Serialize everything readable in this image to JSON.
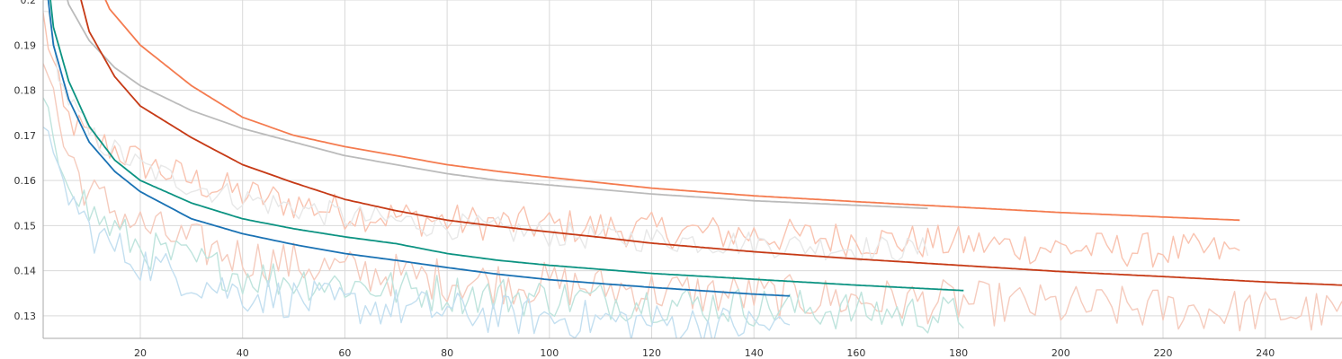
{
  "chart_data": {
    "type": "line",
    "title": "",
    "xlabel": "",
    "ylabel": "",
    "xlim": [
      1,
      255
    ],
    "ylim": [
      0.125,
      0.2
    ],
    "x_ticks": [
      20,
      40,
      60,
      80,
      100,
      120,
      140,
      160,
      180,
      200,
      220,
      240
    ],
    "y_ticks": [
      0.13,
      0.14,
      0.15,
      0.16,
      0.17,
      0.18,
      0.19,
      0.2
    ],
    "x_tick_labels": [
      "20",
      "40",
      "60",
      "80",
      "100",
      "120",
      "140",
      "160",
      "180",
      "200",
      "220",
      "240"
    ],
    "y_tick_labels": [
      "0.13",
      "0.14",
      "0.15",
      "0.16",
      "0.17",
      "0.18",
      "0.19",
      "0.2"
    ],
    "grid": true,
    "legend": "none",
    "series": [
      {
        "color": "#f47b4f",
        "raw_color": "#f9c3b0",
        "smoothed": [
          [
            1,
            0.26
          ],
          [
            6,
            0.226
          ],
          [
            10,
            0.208
          ],
          [
            14,
            0.198
          ],
          [
            20,
            0.19
          ],
          [
            30,
            0.181
          ],
          [
            40,
            0.174
          ],
          [
            50,
            0.17
          ],
          [
            60,
            0.1675
          ],
          [
            70,
            0.1655
          ],
          [
            80,
            0.1635
          ],
          [
            90,
            0.162
          ],
          [
            100,
            0.1607
          ],
          [
            120,
            0.1583
          ],
          [
            140,
            0.1566
          ],
          [
            160,
            0.1553
          ],
          [
            180,
            0.1541
          ],
          [
            200,
            0.1529
          ],
          [
            220,
            0.1519
          ],
          [
            235,
            0.1512
          ]
        ],
        "raw_base": [
          [
            1,
            0.196
          ],
          [
            5,
            0.175
          ],
          [
            10,
            0.169
          ],
          [
            15,
            0.167
          ],
          [
            20,
            0.164
          ],
          [
            30,
            0.16
          ],
          [
            40,
            0.157
          ],
          [
            60,
            0.153
          ],
          [
            80,
            0.151
          ],
          [
            100,
            0.15
          ],
          [
            120,
            0.149
          ],
          [
            140,
            0.148
          ],
          [
            160,
            0.147
          ],
          [
            180,
            0.146
          ],
          [
            200,
            0.145
          ],
          [
            220,
            0.1445
          ],
          [
            235,
            0.144
          ]
        ],
        "raw_noise": 0.004
      },
      {
        "color": "#bbbbbb",
        "raw_color": "#e8e8e8",
        "smoothed": [
          [
            1,
            0.22
          ],
          [
            6,
            0.199
          ],
          [
            10,
            0.191
          ],
          [
            15,
            0.185
          ],
          [
            20,
            0.181
          ],
          [
            30,
            0.1755
          ],
          [
            40,
            0.1715
          ],
          [
            50,
            0.1685
          ],
          [
            60,
            0.1655
          ],
          [
            70,
            0.1635
          ],
          [
            80,
            0.1615
          ],
          [
            90,
            0.16
          ],
          [
            100,
            0.159
          ],
          [
            120,
            0.157
          ],
          [
            140,
            0.1555
          ],
          [
            160,
            0.1545
          ],
          [
            174,
            0.1538
          ]
        ],
        "raw_base": [
          [
            1,
            0.2
          ],
          [
            5,
            0.18
          ],
          [
            10,
            0.17
          ],
          [
            20,
            0.163
          ],
          [
            30,
            0.159
          ],
          [
            40,
            0.156
          ],
          [
            60,
            0.152
          ],
          [
            80,
            0.15
          ],
          [
            100,
            0.148
          ],
          [
            120,
            0.147
          ],
          [
            140,
            0.146
          ],
          [
            160,
            0.145
          ],
          [
            174,
            0.1445
          ]
        ],
        "raw_noise": 0.003
      },
      {
        "color": "#c63a16",
        "raw_color": "#f5cbbd",
        "smoothed": [
          [
            1,
            0.255
          ],
          [
            5,
            0.215
          ],
          [
            10,
            0.193
          ],
          [
            15,
            0.183
          ],
          [
            20,
            0.1765
          ],
          [
            30,
            0.1695
          ],
          [
            40,
            0.1635
          ],
          [
            50,
            0.1595
          ],
          [
            60,
            0.1558
          ],
          [
            70,
            0.1533
          ],
          [
            80,
            0.1512
          ],
          [
            90,
            0.1498
          ],
          [
            100,
            0.1486
          ],
          [
            110,
            0.1474
          ],
          [
            120,
            0.1461
          ],
          [
            140,
            0.1442
          ],
          [
            160,
            0.1426
          ],
          [
            180,
            0.1412
          ],
          [
            200,
            0.1398
          ],
          [
            220,
            0.1387
          ],
          [
            240,
            0.1375
          ],
          [
            255,
            0.1368
          ]
        ],
        "raw_base": [
          [
            1,
            0.19
          ],
          [
            5,
            0.168
          ],
          [
            10,
            0.157
          ],
          [
            20,
            0.15
          ],
          [
            30,
            0.146
          ],
          [
            40,
            0.143
          ],
          [
            60,
            0.14
          ],
          [
            80,
            0.138
          ],
          [
            100,
            0.137
          ],
          [
            120,
            0.1355
          ],
          [
            140,
            0.1345
          ],
          [
            160,
            0.1335
          ],
          [
            180,
            0.133
          ],
          [
            200,
            0.132
          ],
          [
            220,
            0.1315
          ],
          [
            240,
            0.131
          ],
          [
            255,
            0.1305
          ]
        ],
        "raw_noise": 0.005
      },
      {
        "color": "#0c9382",
        "raw_color": "#bfe4dd",
        "smoothed": [
          [
            1,
            0.215
          ],
          [
            3,
            0.194
          ],
          [
            6,
            0.182
          ],
          [
            10,
            0.172
          ],
          [
            15,
            0.1645
          ],
          [
            20,
            0.16
          ],
          [
            30,
            0.155
          ],
          [
            40,
            0.1515
          ],
          [
            50,
            0.1493
          ],
          [
            60,
            0.1475
          ],
          [
            70,
            0.146
          ],
          [
            80,
            0.1438
          ],
          [
            90,
            0.1423
          ],
          [
            100,
            0.1412
          ],
          [
            120,
            0.1394
          ],
          [
            140,
            0.1381
          ],
          [
            160,
            0.1368
          ],
          [
            181,
            0.1356
          ]
        ],
        "raw_base": [
          [
            1,
            0.178
          ],
          [
            3,
            0.166
          ],
          [
            6,
            0.162
          ],
          [
            10,
            0.153
          ],
          [
            15,
            0.149
          ],
          [
            20,
            0.145
          ],
          [
            30,
            0.142
          ],
          [
            40,
            0.139
          ],
          [
            60,
            0.137
          ],
          [
            80,
            0.135
          ],
          [
            100,
            0.134
          ],
          [
            120,
            0.133
          ],
          [
            140,
            0.132
          ],
          [
            160,
            0.131
          ],
          [
            181,
            0.13
          ]
        ],
        "raw_noise": 0.0045
      },
      {
        "color": "#1a72b4",
        "raw_color": "#c3dff0",
        "smoothed": [
          [
            1,
            0.21
          ],
          [
            3,
            0.19
          ],
          [
            6,
            0.178
          ],
          [
            10,
            0.1685
          ],
          [
            15,
            0.162
          ],
          [
            20,
            0.1575
          ],
          [
            30,
            0.1515
          ],
          [
            40,
            0.1482
          ],
          [
            50,
            0.1458
          ],
          [
            60,
            0.1438
          ],
          [
            70,
            0.1423
          ],
          [
            80,
            0.1407
          ],
          [
            90,
            0.1392
          ],
          [
            100,
            0.138
          ],
          [
            120,
            0.1363
          ],
          [
            140,
            0.1348
          ],
          [
            147,
            0.1344
          ]
        ],
        "raw_base": [
          [
            1,
            0.175
          ],
          [
            3,
            0.162
          ],
          [
            6,
            0.157
          ],
          [
            10,
            0.149
          ],
          [
            15,
            0.145
          ],
          [
            20,
            0.142
          ],
          [
            30,
            0.138
          ],
          [
            40,
            0.135
          ],
          [
            60,
            0.1325
          ],
          [
            80,
            0.131
          ],
          [
            100,
            0.1295
          ],
          [
            120,
            0.1285
          ],
          [
            147,
            0.1275
          ]
        ],
        "raw_noise": 0.0045
      }
    ]
  }
}
